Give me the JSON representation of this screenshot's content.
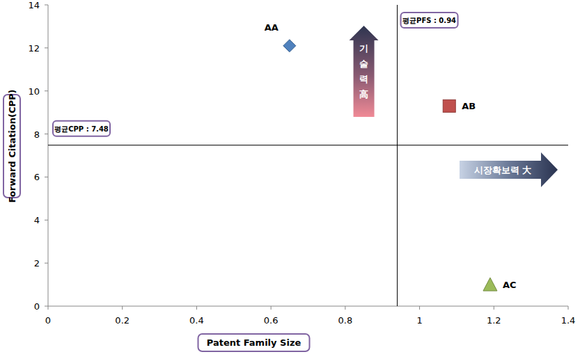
{
  "chart_data": {
    "type": "scatter",
    "x_label": "Patent Family Size",
    "y_label": "Forward Citation(CPP)",
    "xlim": [
      0,
      1.4
    ],
    "xticks": [
      0,
      0.2,
      0.4,
      0.6,
      0.8,
      1,
      1.2,
      1.4
    ],
    "ylim": [
      0,
      14
    ],
    "yticks": [
      0,
      2,
      4,
      6,
      8,
      10,
      12,
      14
    ],
    "grid": false,
    "series": [
      {
        "name": "AA",
        "color": "#4f81bd",
        "marker": "diamond",
        "x": [
          0.65
        ],
        "values": [
          12.1
        ]
      },
      {
        "name": "AB",
        "color": "#c0504d",
        "marker": "square",
        "x": [
          1.08
        ],
        "values": [
          9.3
        ]
      },
      {
        "name": "AC",
        "color": "#9bbb59",
        "marker": "triangle",
        "x": [
          1.19
        ],
        "values": [
          1.0
        ]
      }
    ],
    "x_ref": 0.94,
    "x_ref_label": "평균PFS : 0.94",
    "y_ref": 7.48,
    "y_ref_label": "평균CPP : 7.48",
    "arrow_up_label": "기술력高",
    "arrow_right_label": "시장확보력 大"
  }
}
